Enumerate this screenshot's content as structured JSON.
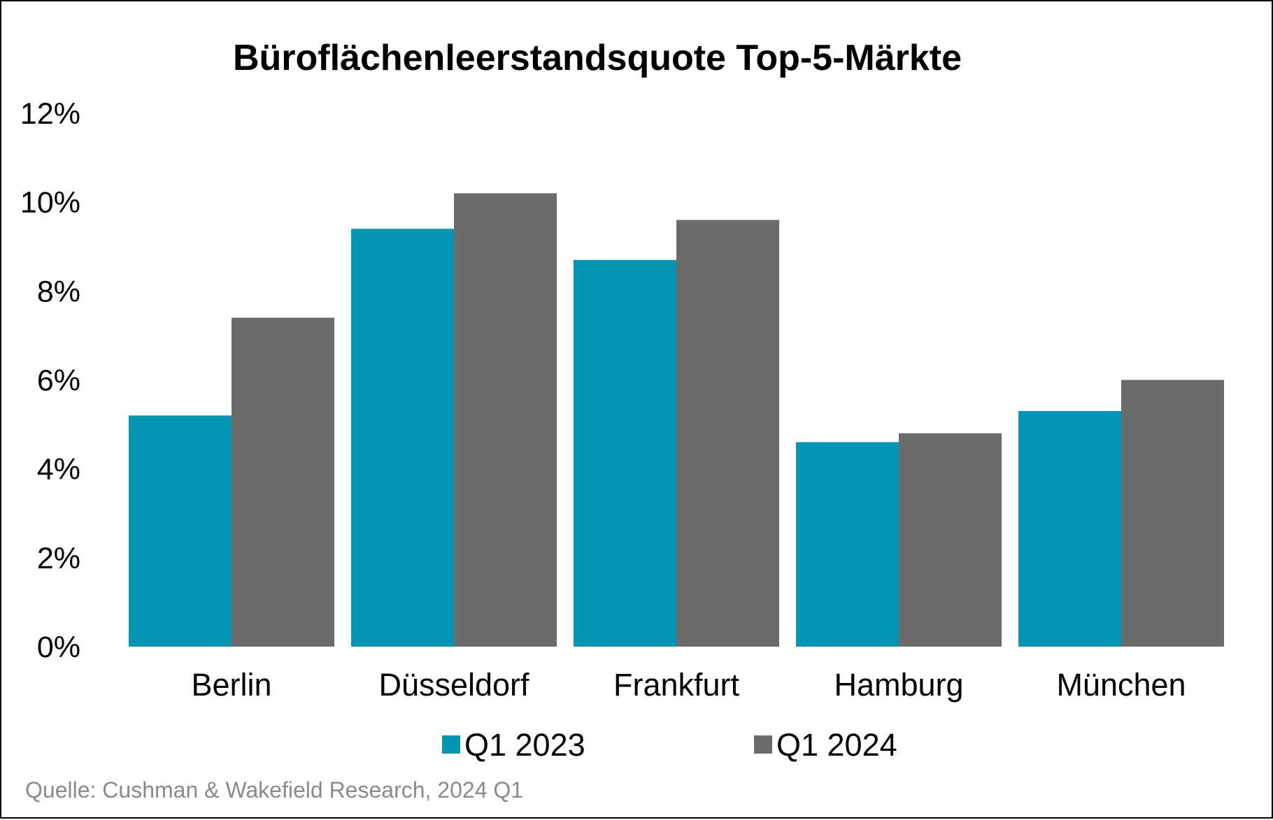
{
  "chart_data": {
    "type": "bar",
    "title": "Büroflächenleerstandsquote Top-5-Märkte",
    "categories": [
      "Berlin",
      "Düsseldorf",
      "Frankfurt",
      "Hamburg",
      "München"
    ],
    "series": [
      {
        "name": "Q1 2023",
        "color": "#0096b4",
        "values": [
          5.2,
          9.4,
          8.7,
          4.6,
          5.3
        ]
      },
      {
        "name": "Q1 2024",
        "color": "#6a6b6a",
        "values": [
          7.4,
          10.2,
          9.6,
          4.8,
          6.0
        ]
      }
    ],
    "y_ticks": [
      "0%",
      "2%",
      "4%",
      "6%",
      "8%",
      "10%",
      "12%"
    ],
    "ylim": [
      0,
      12
    ],
    "ylabel": "",
    "xlabel": "",
    "grid": false,
    "legend_position": "bottom"
  },
  "source": "Quelle: Cushman & Wakefield Research, 2024 Q1"
}
